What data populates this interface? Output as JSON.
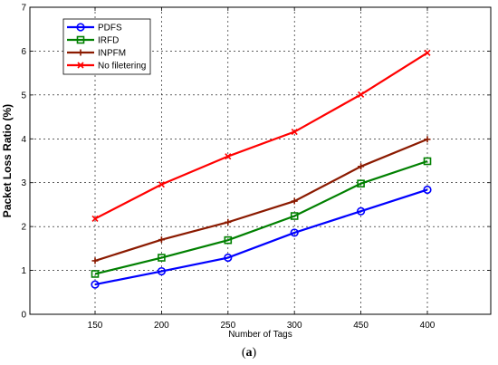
{
  "chart_data": {
    "type": "line",
    "xlabel": "Number of Tags",
    "ylabel": "Packet Loss Ratio (%)",
    "categories": [
      "150",
      "200",
      "250",
      "300",
      "450",
      "400"
    ],
    "ylim": [
      0,
      7
    ],
    "yticks": [
      0,
      1,
      2,
      3,
      4,
      5,
      6,
      7
    ],
    "grid": true,
    "legend_position": "top-left",
    "series": [
      {
        "name": "PDFS",
        "color": "#0000ff",
        "marker": "circle",
        "values": [
          0.68,
          0.98,
          1.29,
          1.86,
          2.35,
          2.84
        ]
      },
      {
        "name": "IRFD",
        "color": "#008000",
        "marker": "square",
        "values": [
          0.92,
          1.29,
          1.69,
          2.24,
          2.98,
          3.49
        ]
      },
      {
        "name": "INPFM",
        "color": "#8b1a00",
        "marker": "plus",
        "values": [
          1.22,
          1.7,
          2.1,
          2.58,
          3.37,
          3.99
        ]
      },
      {
        "name": "No filetering",
        "color": "#ff0000",
        "marker": "x",
        "values": [
          2.18,
          2.96,
          3.6,
          4.16,
          5.01,
          5.96
        ]
      }
    ]
  },
  "caption": "(a)"
}
